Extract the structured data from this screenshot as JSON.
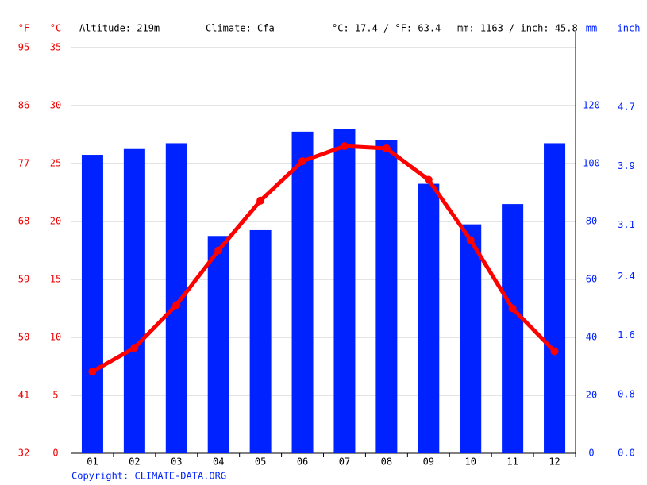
{
  "chart_data": {
    "type": "combo",
    "header": [
      "°F",
      "°C",
      "Altitude: 219m",
      "Climate: Cfa",
      "°C: 17.4 / °F: 63.4",
      "mm: 1163 / inch: 45.8",
      "mm",
      "inch"
    ],
    "copyright": "Copyright: CLIMATE-DATA.ORG",
    "categories": [
      "01",
      "02",
      "03",
      "04",
      "05",
      "06",
      "07",
      "08",
      "09",
      "10",
      "11",
      "12"
    ],
    "series": [
      {
        "type": "bar",
        "axis": "y2",
        "color": "#0022ff",
        "values": [
          103,
          105,
          107,
          75,
          77,
          111,
          112,
          108,
          93,
          79,
          86,
          107
        ]
      },
      {
        "type": "line",
        "axis": "y",
        "color": "#ff0000",
        "values": [
          7.05,
          9.1,
          12.8,
          17.5,
          21.8,
          25.2,
          26.5,
          26.3,
          23.6,
          18.4,
          12.5,
          8.8
        ]
      }
    ],
    "ylim": [
      0,
      35
    ],
    "yticks": [
      0,
      5,
      10,
      15,
      20,
      25,
      30,
      35
    ],
    "yflim": [
      32,
      95
    ],
    "yfticks": [
      32,
      41,
      50,
      59,
      68,
      77,
      86,
      95
    ],
    "y2lim": [
      0,
      140
    ],
    "y2ticks": [
      0,
      20,
      40,
      60,
      80,
      100,
      120
    ],
    "y3lim": [
      0,
      5.51
    ],
    "y3ticks": [
      {
        "value": 0,
        "label": "0.0"
      },
      0.8,
      1.6,
      2.4,
      3.1,
      3.9,
      4.7
    ],
    "grid": true
  }
}
